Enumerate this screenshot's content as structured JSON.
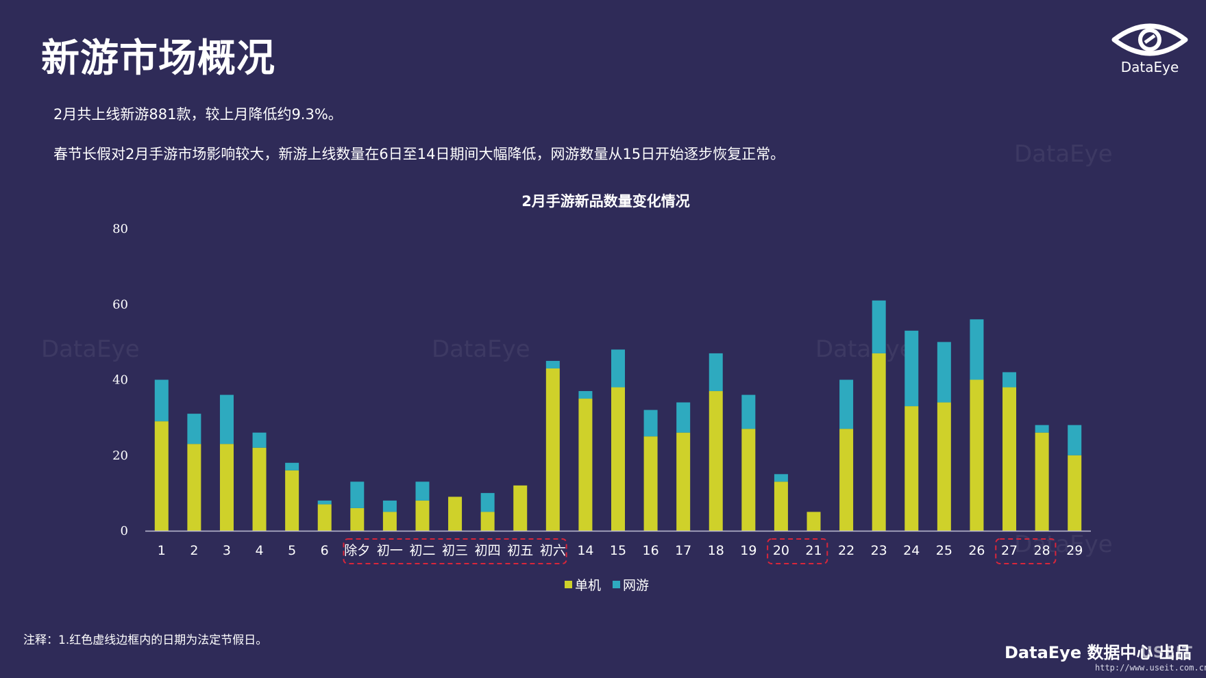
{
  "page": {
    "title": "新游市场概况",
    "paragraph1": "2月共上线新游881款，较上月降低约9.3%。",
    "paragraph2": "春节长假对2月手游市场影响较大，新游上线数量在6日至14日期间大幅降低，网游数量从15日开始逐步恢复正常。",
    "note": "注释：1.红色虚线边框内的日期为法定节假日。",
    "brand": "DataEye 数据中心 出品",
    "url": "http://www.useit.com.cn",
    "url_logo": "USEIT"
  },
  "logo": {
    "text": "DataEye",
    "icon": "dataeye-eye-icon"
  },
  "watermark": "DataEye",
  "colors": {
    "background": "#2f2b58",
    "standalone": "#cfd12a",
    "online": "#2eaabf",
    "holiday_box": "#d9263a"
  },
  "chart_data": {
    "type": "bar",
    "stacked": true,
    "title": "2月手游新品数量变化情况",
    "categories": [
      "1",
      "2",
      "3",
      "4",
      "5",
      "6",
      "除夕",
      "初一",
      "初二",
      "初三",
      "初四",
      "初五",
      "初六",
      "14",
      "15",
      "16",
      "17",
      "18",
      "19",
      "20",
      "21",
      "22",
      "23",
      "24",
      "25",
      "26",
      "27",
      "28",
      "29"
    ],
    "series": [
      {
        "name": "单机",
        "color": "#cfd12a",
        "values": [
          29,
          23,
          23,
          22,
          16,
          7,
          6,
          5,
          8,
          9,
          5,
          12,
          43,
          35,
          38,
          25,
          26,
          37,
          27,
          13,
          5,
          27,
          47,
          33,
          34,
          40,
          38,
          26,
          20
        ]
      },
      {
        "name": "网游",
        "color": "#2eaabf",
        "values": [
          11,
          8,
          13,
          4,
          2,
          1,
          7,
          3,
          5,
          0,
          5,
          0,
          2,
          2,
          10,
          7,
          8,
          10,
          9,
          2,
          0,
          13,
          14,
          20,
          16,
          16,
          4,
          2,
          8
        ]
      }
    ],
    "yticks": [
      "0",
      "20",
      "40",
      "60",
      "80"
    ],
    "ylim": [
      0,
      80
    ],
    "grid": false,
    "legend": "bottom",
    "holiday_groups": [
      [
        "除夕",
        "初六"
      ],
      [
        "20",
        "21"
      ],
      [
        "27",
        "28"
      ]
    ]
  }
}
